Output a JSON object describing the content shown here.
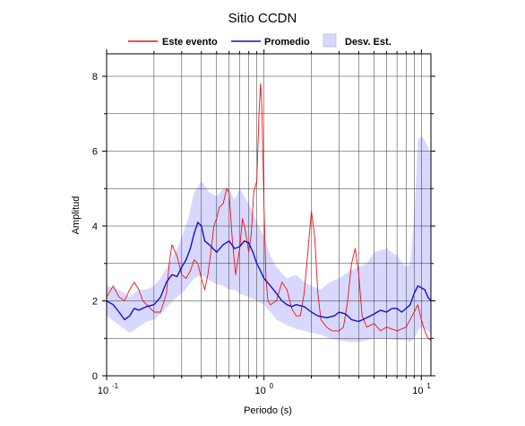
{
  "chart_data": {
    "type": "line",
    "title": "Sitio CCDN",
    "xlabel": "Periodo (s)",
    "ylabel": "Amplitud",
    "x_scale": "log",
    "xlim": [
      0.1,
      11.5
    ],
    "ylim": [
      0,
      8.6
    ],
    "grid": true,
    "legend_position": "top",
    "x_ticks": [
      {
        "value": 0.1,
        "base": "10",
        "exp": "-1"
      },
      {
        "value": 1,
        "base": "10",
        "exp": "0"
      },
      {
        "value": 10,
        "base": "10",
        "exp": "1"
      }
    ],
    "y_ticks": [
      0,
      2,
      4,
      6,
      8
    ],
    "colors": {
      "este_evento": "#ee1111",
      "promedio": "#1111cc",
      "band": "#d8d8ff",
      "band_edge": "#b8b8ee"
    },
    "legend": [
      {
        "key": "este_evento",
        "label": "Este evento"
      },
      {
        "key": "promedio",
        "label": "Promedio"
      },
      {
        "key": "band",
        "label": "Desv. Est."
      }
    ],
    "series": [
      {
        "key": "este_evento",
        "name": "Este evento",
        "x": [
          0.1,
          0.11,
          0.12,
          0.13,
          0.14,
          0.15,
          0.16,
          0.17,
          0.18,
          0.19,
          0.2,
          0.22,
          0.24,
          0.25,
          0.26,
          0.28,
          0.3,
          0.32,
          0.34,
          0.36,
          0.38,
          0.4,
          0.42,
          0.44,
          0.46,
          0.48,
          0.5,
          0.52,
          0.55,
          0.58,
          0.6,
          0.63,
          0.66,
          0.7,
          0.73,
          0.76,
          0.8,
          0.83,
          0.86,
          0.9,
          0.93,
          0.95,
          0.97,
          1.0,
          1.03,
          1.06,
          1.1,
          1.2,
          1.3,
          1.4,
          1.5,
          1.6,
          1.7,
          1.8,
          1.9,
          2.0,
          2.1,
          2.2,
          2.3,
          2.5,
          2.7,
          3.0,
          3.2,
          3.4,
          3.6,
          3.8,
          4.0,
          4.2,
          4.5,
          5.0,
          5.5,
          6.0,
          7.0,
          8.0,
          9.0,
          9.5,
          10.0,
          10.5,
          11.0,
          11.5
        ],
        "y": [
          2.1,
          2.4,
          2.1,
          2.0,
          2.3,
          2.5,
          2.3,
          2.0,
          1.9,
          1.8,
          1.7,
          1.7,
          2.2,
          3.0,
          3.5,
          3.2,
          2.7,
          2.6,
          2.8,
          3.1,
          3.0,
          2.6,
          2.3,
          2.7,
          3.3,
          4.0,
          4.2,
          4.5,
          4.6,
          5.0,
          4.9,
          3.6,
          2.7,
          3.4,
          4.2,
          3.9,
          3.3,
          3.8,
          4.9,
          5.2,
          7.0,
          7.8,
          7.2,
          4.5,
          2.6,
          2.0,
          1.9,
          2.0,
          2.5,
          2.3,
          1.8,
          1.6,
          1.6,
          2.2,
          3.3,
          4.4,
          3.7,
          2.2,
          1.5,
          1.3,
          1.2,
          1.2,
          1.3,
          2.0,
          3.0,
          3.4,
          2.7,
          1.6,
          1.3,
          1.4,
          1.2,
          1.3,
          1.2,
          1.3,
          1.7,
          1.9,
          1.5,
          1.2,
          1.0,
          0.95
        ]
      },
      {
        "key": "promedio",
        "name": "Promedio",
        "x": [
          0.1,
          0.11,
          0.12,
          0.13,
          0.14,
          0.15,
          0.16,
          0.18,
          0.2,
          0.22,
          0.24,
          0.26,
          0.28,
          0.3,
          0.32,
          0.34,
          0.36,
          0.38,
          0.4,
          0.42,
          0.45,
          0.5,
          0.55,
          0.6,
          0.65,
          0.7,
          0.75,
          0.8,
          0.85,
          0.9,
          0.95,
          1.0,
          1.1,
          1.2,
          1.3,
          1.4,
          1.5,
          1.6,
          1.8,
          2.0,
          2.2,
          2.5,
          2.8,
          3.0,
          3.3,
          3.6,
          4.0,
          4.5,
          5.0,
          5.5,
          6.0,
          6.5,
          7.0,
          7.5,
          8.0,
          8.5,
          9.0,
          9.5,
          10.0,
          10.5,
          11.0,
          11.5
        ],
        "y": [
          2.0,
          1.9,
          1.7,
          1.5,
          1.6,
          1.8,
          1.75,
          1.85,
          1.9,
          2.1,
          2.5,
          2.7,
          2.65,
          2.9,
          3.1,
          3.4,
          3.8,
          4.1,
          4.0,
          3.6,
          3.5,
          3.3,
          3.5,
          3.6,
          3.4,
          3.45,
          3.6,
          3.55,
          3.3,
          3.0,
          2.8,
          2.6,
          2.4,
          2.2,
          2.0,
          1.9,
          1.85,
          1.9,
          1.85,
          1.7,
          1.6,
          1.55,
          1.6,
          1.7,
          1.65,
          1.5,
          1.45,
          1.55,
          1.65,
          1.75,
          1.7,
          1.8,
          1.8,
          1.7,
          1.8,
          1.9,
          2.2,
          2.4,
          2.35,
          2.3,
          2.1,
          2.0
        ]
      }
    ],
    "std_band": {
      "key": "band",
      "name": "Desv. Est.",
      "x": [
        0.1,
        0.12,
        0.14,
        0.16,
        0.18,
        0.2,
        0.22,
        0.25,
        0.28,
        0.3,
        0.33,
        0.36,
        0.4,
        0.45,
        0.5,
        0.55,
        0.6,
        0.65,
        0.7,
        0.8,
        0.9,
        1.0,
        1.1,
        1.2,
        1.4,
        1.6,
        1.8,
        2.0,
        2.3,
        2.6,
        3.0,
        3.5,
        4.0,
        4.5,
        5.0,
        6.0,
        7.0,
        8.0,
        8.5,
        9.0,
        9.5,
        10.0,
        10.5,
        11.0,
        11.5
      ],
      "upper": [
        2.4,
        2.3,
        2.1,
        2.3,
        2.3,
        2.4,
        2.6,
        3.0,
        3.4,
        3.7,
        4.2,
        4.9,
        5.2,
        4.9,
        4.8,
        5.0,
        5.0,
        4.7,
        5.0,
        4.6,
        4.1,
        3.7,
        3.2,
        2.9,
        2.6,
        2.7,
        2.5,
        2.4,
        2.3,
        2.5,
        2.6,
        2.8,
        2.9,
        3.0,
        3.3,
        3.4,
        3.2,
        2.9,
        3.0,
        4.2,
        6.3,
        6.4,
        6.3,
        6.1,
        5.9
      ],
      "lower": [
        1.6,
        1.35,
        1.15,
        1.3,
        1.45,
        1.5,
        1.65,
        1.9,
        2.1,
        2.2,
        2.4,
        2.6,
        2.7,
        2.55,
        2.45,
        2.4,
        2.3,
        2.3,
        2.2,
        2.1,
        2.0,
        1.9,
        1.7,
        1.5,
        1.35,
        1.25,
        1.2,
        1.15,
        1.1,
        1.0,
        0.95,
        0.9,
        0.9,
        0.95,
        1.0,
        1.0,
        0.95,
        0.95,
        0.9,
        1.0,
        1.2,
        1.3,
        1.25,
        1.2,
        1.1
      ]
    }
  }
}
